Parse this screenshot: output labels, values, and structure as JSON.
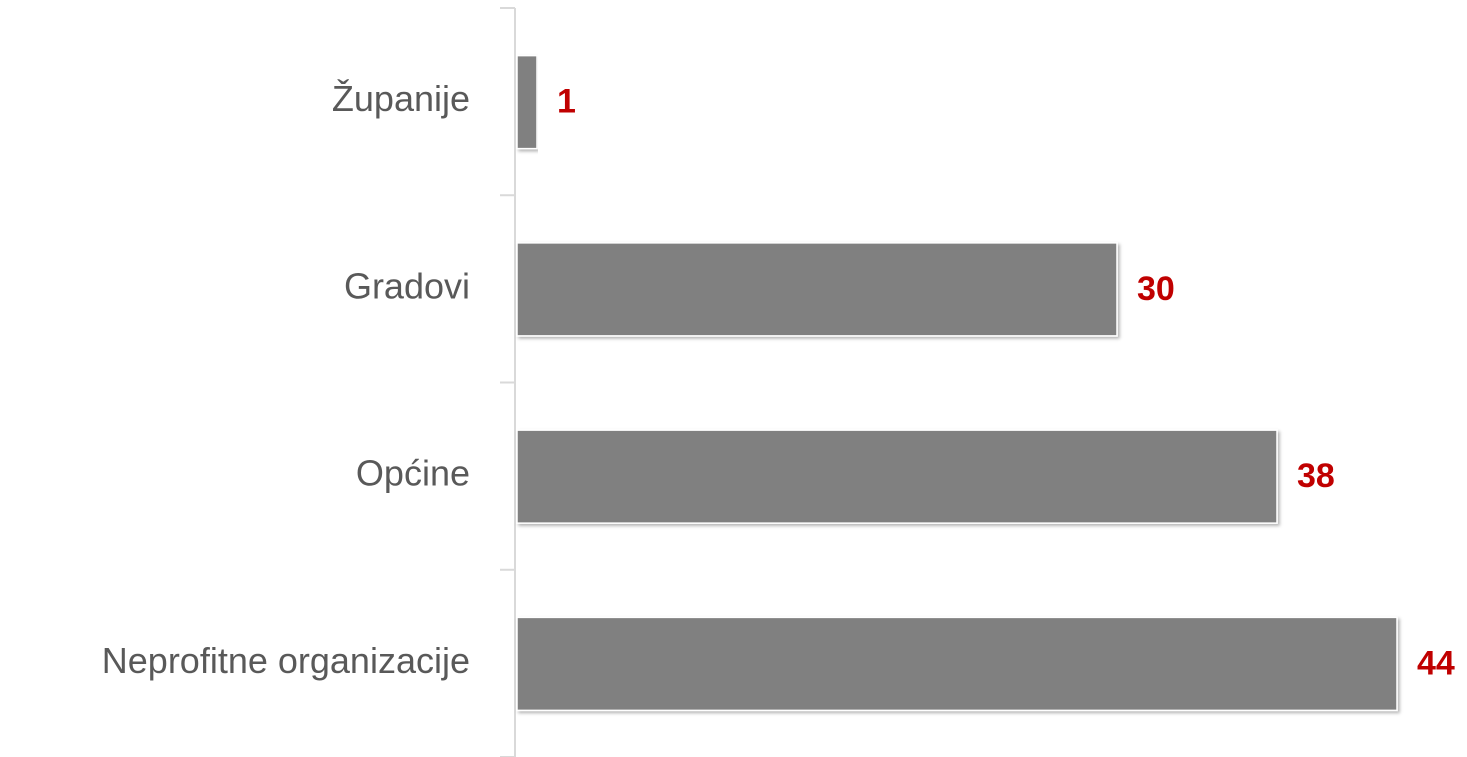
{
  "chart_data": {
    "type": "bar",
    "orientation": "horizontal",
    "categories": [
      "Županije",
      "Gradovi",
      "Općine",
      "Neprofitne organizacije"
    ],
    "values": [
      1,
      30,
      38,
      44
    ],
    "color": "#808080",
    "label_color": "#c00000"
  }
}
